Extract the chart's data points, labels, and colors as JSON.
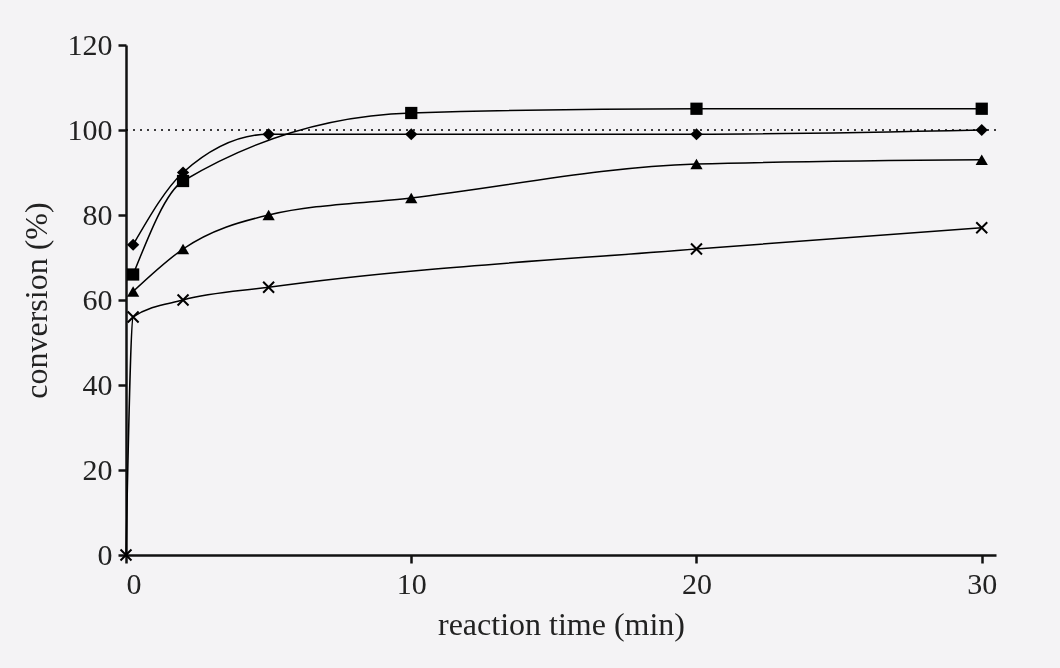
{
  "chart_data": {
    "type": "line",
    "xlabel": "reaction time (min)",
    "ylabel": "conversion (%)",
    "xlim": [
      0,
      30.5
    ],
    "xticks": [
      0,
      10,
      20,
      30
    ],
    "ylim": [
      0,
      120
    ],
    "yticks": [
      0,
      20,
      40,
      60,
      80,
      100,
      120
    ],
    "grid": false,
    "ref_lines": [
      {
        "axis": "y",
        "value": 100,
        "line_style": "dotted",
        "color": "#000000"
      }
    ],
    "series": [
      {
        "color": "#000000",
        "marker": "square",
        "x": [
          0.25,
          2,
          10,
          20,
          30
        ],
        "values": [
          66,
          88,
          104,
          105,
          105
        ]
      },
      {
        "color": "#000000",
        "marker": "diamond",
        "x": [
          0.25,
          2,
          5,
          10,
          20,
          30
        ],
        "values": [
          73,
          90,
          99,
          99,
          99,
          100
        ]
      },
      {
        "color": "#000000",
        "marker": "triangle",
        "x": [
          0.25,
          2,
          5,
          10,
          20,
          30
        ],
        "values": [
          62,
          72,
          80,
          84,
          92,
          93
        ]
      },
      {
        "color": "#000000",
        "marker": "cross",
        "x": [
          0,
          0.25,
          2,
          5,
          20,
          30
        ],
        "values": [
          0,
          56,
          60,
          63,
          72,
          77
        ]
      }
    ]
  }
}
